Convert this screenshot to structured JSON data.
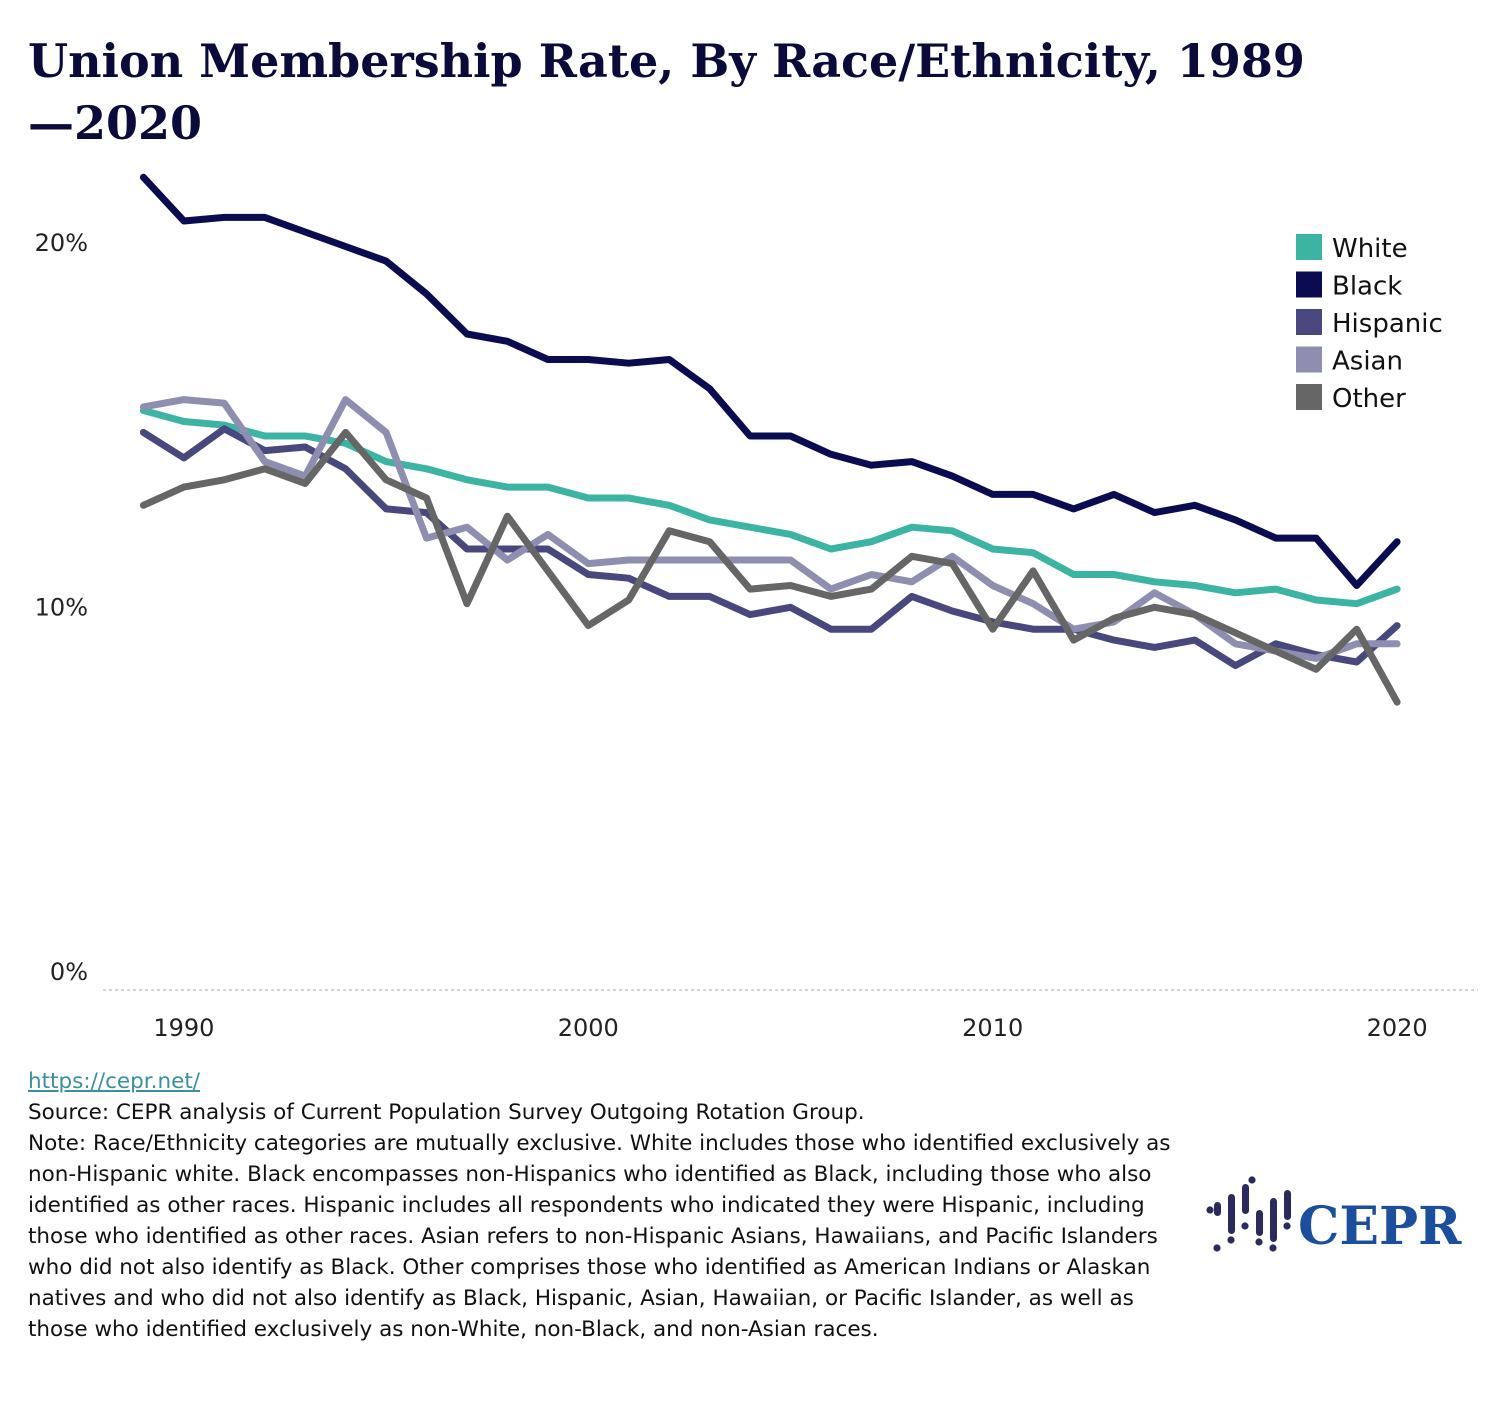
{
  "title": "Union Membership Rate, By Race/Ethnicity, 1989—2020",
  "chart_data": {
    "type": "line",
    "title": "Union Membership Rate, By Race/Ethnicity, 1989—2020",
    "xlabel": "",
    "ylabel": "",
    "x": [
      1989,
      1990,
      1991,
      1992,
      1993,
      1994,
      1995,
      1996,
      1997,
      1998,
      1999,
      2000,
      2001,
      2002,
      2003,
      2004,
      2005,
      2006,
      2007,
      2008,
      2009,
      2010,
      2011,
      2012,
      2013,
      2014,
      2015,
      2016,
      2017,
      2018,
      2019,
      2020
    ],
    "xlim": [
      1988,
      2022
    ],
    "ylim": [
      0,
      22.5
    ],
    "x_ticks": [
      1990,
      2000,
      2010,
      2020
    ],
    "x_tick_labels": [
      "1990",
      "2000",
      "2010",
      "2020"
    ],
    "y_ticks": [
      0,
      10,
      20
    ],
    "y_tick_labels": [
      "0%",
      "10%",
      "20%"
    ],
    "grid": "baseline only",
    "legend_position": "top-right",
    "series": [
      {
        "name": "White",
        "color": "#3cb4a4",
        "values": [
          15.9,
          15.6,
          15.5,
          15.2,
          15.2,
          15.0,
          14.5,
          14.3,
          14.0,
          13.8,
          13.8,
          13.5,
          13.5,
          13.3,
          12.9,
          12.7,
          12.5,
          12.1,
          12.3,
          12.7,
          12.6,
          12.1,
          12.0,
          11.4,
          11.4,
          11.2,
          11.1,
          10.9,
          11.0,
          10.7,
          10.6,
          11.0
        ]
      },
      {
        "name": "Black",
        "color": "#0b0b52",
        "values": [
          22.3,
          21.1,
          21.2,
          21.2,
          20.8,
          20.4,
          20.0,
          19.1,
          18.0,
          17.8,
          17.3,
          17.3,
          17.2,
          17.3,
          16.5,
          15.2,
          15.2,
          14.7,
          14.4,
          14.5,
          14.1,
          13.6,
          13.6,
          13.2,
          13.6,
          13.1,
          13.3,
          12.9,
          12.4,
          12.4,
          11.1,
          12.3
        ]
      },
      {
        "name": "Hispanic",
        "color": "#48487e",
        "values": [
          15.3,
          14.6,
          15.4,
          14.8,
          14.9,
          14.3,
          13.2,
          13.1,
          12.1,
          12.1,
          12.1,
          11.4,
          11.3,
          10.8,
          10.8,
          10.3,
          10.5,
          9.9,
          9.9,
          10.8,
          10.4,
          10.1,
          9.9,
          9.9,
          9.6,
          9.4,
          9.6,
          8.9,
          9.5,
          9.2,
          9.0,
          10.0
        ]
      },
      {
        "name": "Asian",
        "color": "#8e8eb0",
        "values": [
          16.0,
          16.2,
          16.1,
          14.5,
          14.1,
          16.2,
          15.3,
          12.4,
          12.7,
          11.8,
          12.5,
          11.7,
          11.8,
          11.8,
          11.8,
          11.8,
          11.8,
          11.0,
          11.4,
          11.2,
          11.9,
          11.1,
          10.6,
          9.9,
          10.1,
          10.9,
          10.3,
          9.5,
          9.3,
          9.1,
          9.5,
          9.5
        ]
      },
      {
        "name": "Other",
        "color": "#666666",
        "values": [
          13.3,
          13.8,
          14.0,
          14.3,
          13.9,
          15.3,
          14.0,
          13.5,
          10.6,
          13.0,
          11.5,
          10.0,
          10.7,
          12.6,
          12.3,
          11.0,
          11.1,
          10.8,
          11.0,
          11.9,
          11.7,
          9.9,
          11.5,
          9.6,
          10.2,
          10.5,
          10.3,
          9.8,
          9.3,
          8.8,
          9.9,
          7.9
        ]
      }
    ]
  },
  "footer": {
    "link": "https://cepr.net/",
    "source": "Source: CEPR analysis of Current Population Survey Outgoing Rotation Group.",
    "note": "Note: Race/Ethnicity categories are mutually exclusive. White includes those who identified exclusively as non-Hispanic white. Black encompasses non-Hispanics who identified as Black, including those who also identified as other races. Hispanic includes all respondents who indicated they were Hispanic, including those who identified as other races. Asian refers to non-Hispanic Asians, Hawaiians, and Pacific Islanders who did not also identify as Black. Other comprises those who identified as American Indians or Alaskan natives and who did not also identify as Black, Hispanic, Asian, Hawaiian, or Pacific Islander, as well as those who identified exclusively as non-White, non-Black, and non-Asian races."
  },
  "logo": {
    "text": "CEPR",
    "mark_color": "#2a2a5e",
    "text_color": "#1c4e9e"
  }
}
